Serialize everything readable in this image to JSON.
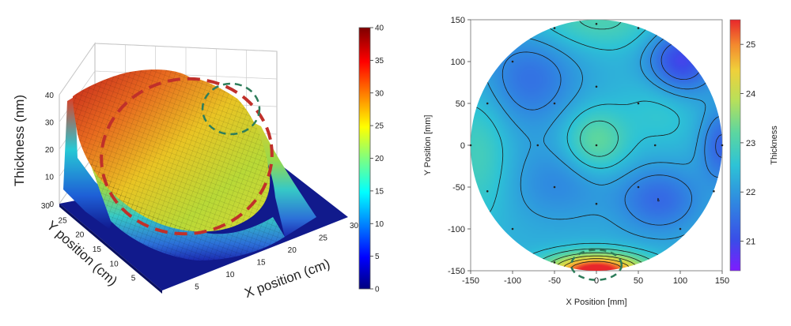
{
  "chart_data": [
    {
      "type": "surface3d",
      "title": "",
      "zlabel": "Thickness (nm)",
      "ylabel": "Y position (cm)",
      "xlabel": "X position (cm)",
      "z_ticks": [
        "0",
        "10",
        "20",
        "30",
        "40"
      ],
      "y_ticks": [
        "5",
        "10",
        "15",
        "20",
        "25",
        "30"
      ],
      "x_ticks": [
        "5",
        "10",
        "15",
        "20",
        "25",
        "30"
      ],
      "xlim": [
        0,
        30
      ],
      "ylim": [
        0,
        30
      ],
      "zlim": [
        0,
        40
      ],
      "colorbar": {
        "min": 0,
        "max": 40,
        "ticks": [
          "0",
          "5",
          "10",
          "15",
          "20",
          "25",
          "30",
          "35",
          "40"
        ]
      },
      "film_thickness_range_nm": [
        10,
        37
      ],
      "annotations": [
        {
          "shape": "ellipse",
          "style": "dashed",
          "color": "#c0302a"
        },
        {
          "shape": "ellipse",
          "style": "dashed",
          "color": "#2e7d5b"
        }
      ]
    },
    {
      "type": "heatmap",
      "title": "",
      "xlabel": "X Position [mm]",
      "ylabel": "Y Position [mm]",
      "x_ticks": [
        "-150",
        "-100",
        "-50",
        "0",
        "50",
        "100",
        "150"
      ],
      "y_ticks": [
        "150",
        "100",
        "50",
        "0",
        "-50",
        "-100",
        "-150"
      ],
      "xlim": [
        -150,
        150
      ],
      "ylim": [
        -150,
        150
      ],
      "wafer_radius_mm": 150,
      "colorbar": {
        "label": "Thickness",
        "min": 20.4,
        "max": 25.5,
        "ticks": [
          "21",
          "22",
          "23",
          "24",
          "25"
        ]
      },
      "blobs": [
        {
          "x": 0,
          "y": 5,
          "sx": 26,
          "sy": 26,
          "amp": 1.0
        },
        {
          "x": 100,
          "y": 100,
          "sx": 28,
          "sy": 28,
          "amp": -1.5
        },
        {
          "x": -80,
          "y": 80,
          "sx": 40,
          "sy": 40,
          "amp": -0.8
        },
        {
          "x": 75,
          "y": -65,
          "sx": 35,
          "sy": 28,
          "amp": -0.9
        },
        {
          "x": -45,
          "y": -45,
          "sx": 40,
          "sy": 32,
          "amp": -0.5
        },
        {
          "x": -140,
          "y": -10,
          "sx": 25,
          "sy": 55,
          "amp": 0.6
        },
        {
          "x": 150,
          "y": 0,
          "sx": 18,
          "sy": 30,
          "amp": -1.0
        },
        {
          "x": 0,
          "y": -150,
          "sx": 40,
          "sy": 14,
          "amp": 3.6
        },
        {
          "x": 0,
          "y": 150,
          "sx": 60,
          "sy": 25,
          "amp": 0.7
        },
        {
          "x": 80,
          "y": 50,
          "sx": 30,
          "sy": 35,
          "amp": 0.4
        }
      ],
      "base_thickness": 22.3,
      "sample_points": [
        [
          0,
          145
        ],
        [
          -50,
          140
        ],
        [
          -100,
          100
        ],
        [
          0,
          70
        ],
        [
          50,
          50
        ],
        [
          -130,
          50
        ],
        [
          -50,
          50
        ],
        [
          -150,
          0
        ],
        [
          -70,
          0
        ],
        [
          0,
          0
        ],
        [
          70,
          0
        ],
        [
          150,
          0
        ],
        [
          -130,
          -55
        ],
        [
          -50,
          -50
        ],
        [
          50,
          -50
        ],
        [
          0,
          -70
        ],
        [
          140,
          -55
        ],
        [
          100,
          -100
        ],
        [
          -100,
          -100
        ],
        [
          50,
          140
        ],
        [
          -50,
          -140
        ]
      ],
      "annotations": [
        {
          "shape": "ellipse",
          "style": "dashed",
          "color": "#2e7d5b",
          "cx": 0,
          "cy": -143,
          "rx": 30,
          "ry": 18
        }
      ]
    }
  ]
}
